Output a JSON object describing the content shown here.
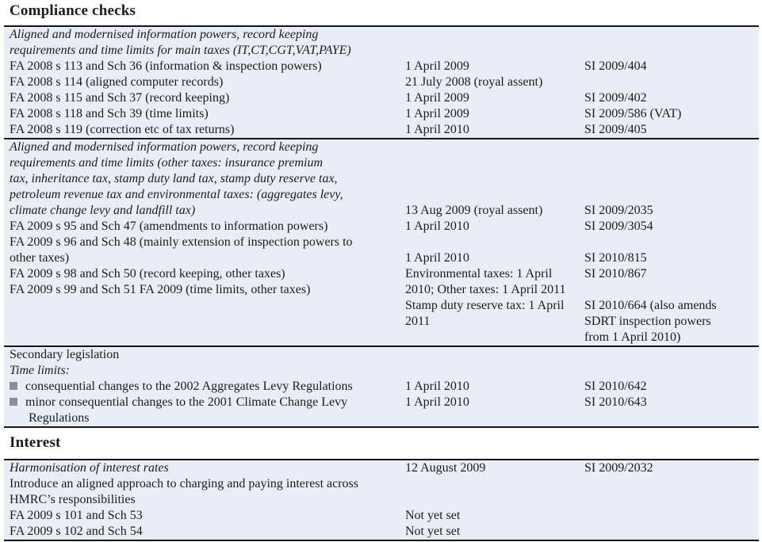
{
  "page": {
    "background_color": "#ffffff",
    "band_color": "#e9eef6",
    "rule_color": "#161616",
    "bullet_color": "#8b9096",
    "text_color": "#1b1b1b"
  },
  "sections": [
    {
      "kind": "title",
      "text": "Compliance checks"
    },
    {
      "kind": "block",
      "name": "main-taxes",
      "lines": [
        {
          "c1": "Aligned and modernised information powers, record keeping",
          "s": "i"
        },
        {
          "c1": "requirements and time limits for main taxes (IT,CT,CGT,VAT,PAYE)",
          "s": "i"
        },
        {
          "c1": "FA 2008 s 113 and Sch 36 (information & inspection powers)",
          "c2": "1 April 2009",
          "c3": "SI 2009/404"
        },
        {
          "c1": "FA 2008 s 114 (aligned computer records)",
          "c2": "21 July 2008 (royal assent)"
        },
        {
          "c1": "FA 2008 s 115 and Sch 37 (record keeping)",
          "c2": "1 April 2009",
          "c3": "SI 2009/402"
        },
        {
          "c1": "FA 2008 s 118 and Sch 39 (time limits)",
          "c2": "1 April 2009",
          "c3": "SI 2009/586 (VAT)"
        },
        {
          "c1": "FA 2008 s 119 (correction etc of tax returns)",
          "c2": "1 April 2010",
          "c3": "SI 2009/405"
        }
      ]
    },
    {
      "kind": "block",
      "name": "other-taxes",
      "lines": [
        {
          "c1": "Aligned and modernised information powers, record keeping",
          "s": "i"
        },
        {
          "c1": "requirements and time limits (other taxes: insurance premium",
          "s": "i"
        },
        {
          "c1": "tax, inheritance tax, stamp duty land tax, stamp duty reserve tax,",
          "s": "i"
        },
        {
          "c1": "petroleum revenue tax and environmental taxes: (aggregates levy,",
          "s": "i"
        },
        {
          "c1": "climate change levy and landfill tax)",
          "s": "i",
          "c2": "13 Aug 2009 (royal assent)",
          "c3": "SI 2009/2035"
        },
        {
          "c1": "FA 2009 s 95 and Sch 47 (amendments to information powers)",
          "c2": "1 April 2010",
          "c3": "SI 2009/3054"
        },
        {
          "c1": "FA 2009 s 96 and Sch 48 (mainly extension of inspection powers to"
        },
        {
          "c1": "other taxes)",
          "c2": "1 April 2010",
          "c3": "SI 2010/815"
        },
        {
          "c1": "FA 2009 s 98 and Sch 50 (record keeping, other taxes)",
          "c2": "Environmental taxes: 1 April",
          "c3": "SI 2010/867"
        },
        {
          "c1": "FA 2009 s 99 and Sch 51 FA 2009 (time limits, other taxes)",
          "c2": "2010; Other taxes: 1 April 2011"
        },
        {
          "c2": "Stamp duty reserve tax: 1 April",
          "c3": "SI 2010/664 (also amends"
        },
        {
          "c2": "2011",
          "c3": "SDRT inspection powers"
        },
        {
          "c3": "from 1 April 2010)"
        }
      ]
    },
    {
      "kind": "block",
      "name": "secondary-legislation",
      "lines": [
        {
          "c1": "Secondary legislation"
        },
        {
          "c1": "Time limits:",
          "s": "i"
        },
        {
          "c1": "consequential changes to the 2002 Aggregates Levy Regulations",
          "s": "b",
          "c2": "1 April 2010",
          "c3": "SI 2010/642"
        },
        {
          "c1": "minor consequential changes to the 2001 Climate Change Levy",
          "s": "b",
          "c2": "1 April 2010",
          "c3": "SI 2010/643"
        },
        {
          "c1": "Regulations",
          "s": "c"
        }
      ]
    },
    {
      "kind": "title",
      "text": "Interest"
    },
    {
      "kind": "block",
      "name": "interest",
      "lines": [
        {
          "c1": "Harmonisation of interest rates",
          "s": "i",
          "c2": "12 August 2009",
          "c3": "SI 2009/2032"
        },
        {
          "c1": "Introduce an aligned approach to charging and paying interest across"
        },
        {
          "c1": "HMRC’s responsibilities"
        },
        {
          "c1": "FA 2009 s 101 and Sch 53",
          "c2": "Not yet set"
        },
        {
          "c1": "FA 2009 s 102 and Sch 54",
          "c2": "Not yet set"
        }
      ]
    }
  ]
}
